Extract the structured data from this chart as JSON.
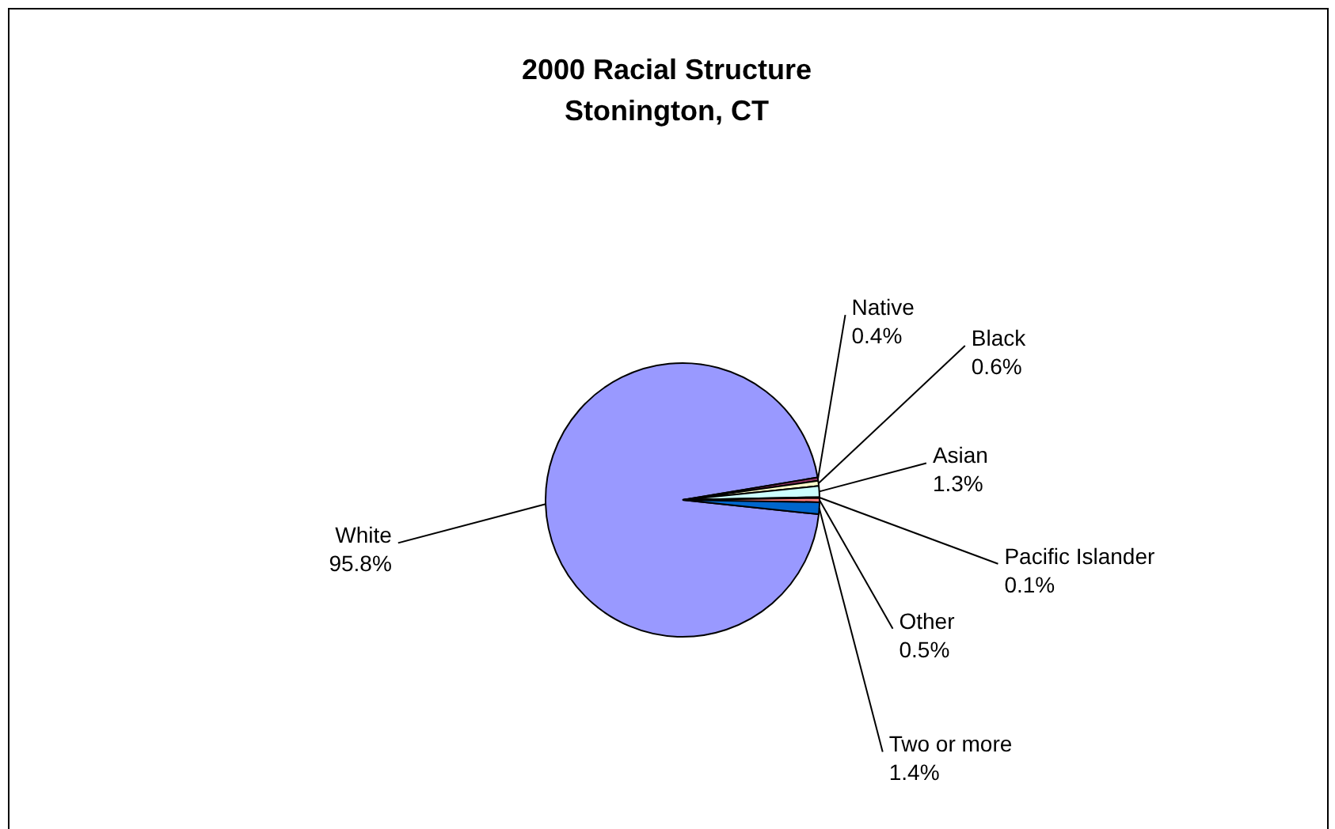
{
  "chart_data": {
    "type": "pie",
    "title": "2000 Racial Structure",
    "subtitle": "Stonington, CT",
    "categories": [
      "White",
      "Native",
      "Black",
      "Asian",
      "Pacific Islander",
      "Other",
      "Two or more"
    ],
    "values": [
      95.8,
      0.4,
      0.6,
      1.3,
      0.1,
      0.5,
      1.4
    ],
    "value_labels": [
      "95.8%",
      "0.4%",
      "0.6%",
      "1.3%",
      "0.1%",
      "0.5%",
      "1.4%"
    ],
    "colors": [
      "#9999ff",
      "#993366",
      "#ffffcc",
      "#ccffff",
      "#660066",
      "#ff8080",
      "#0066cc"
    ],
    "legend": false
  }
}
